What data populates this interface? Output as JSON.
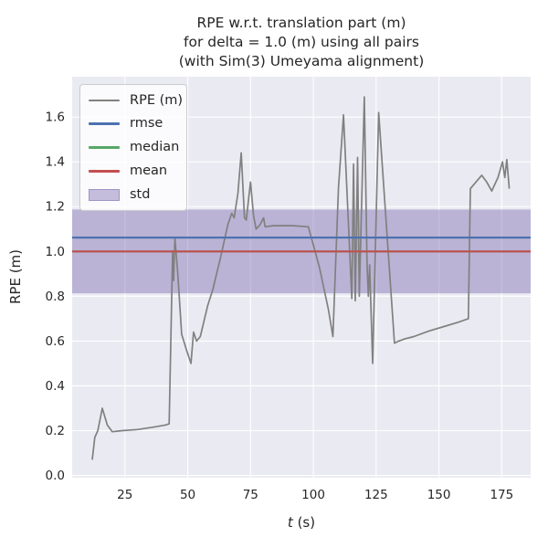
{
  "figure": {
    "background": "#ffffff",
    "axes_background": "#eaeaf2",
    "grid_color": "#ffffff",
    "text_color": "#262626"
  },
  "chart_data": {
    "type": "line",
    "title_lines": [
      "RPE w.r.t. translation part (m)",
      "for delta = 1.0 (m) using all pairs",
      "(with Sim(3) Umeyama alignment)"
    ],
    "xlabel_var": "t",
    "xlabel_units": " (s)",
    "ylabel": "RPE (m)",
    "xlim": [
      4,
      186.5
    ],
    "ylim": [
      -0.01,
      1.78
    ],
    "xticks": [
      25,
      50,
      75,
      100,
      125,
      150,
      175
    ],
    "yticks": [
      0.0,
      0.2,
      0.4,
      0.6,
      0.8,
      1.0,
      1.2,
      1.4,
      1.6
    ],
    "grid": true,
    "legend_position": "upper-left",
    "series": {
      "name": "RPE (m)",
      "color": "#808080",
      "points": [
        [
          12,
          0.07
        ],
        [
          13,
          0.17
        ],
        [
          14.2,
          0.2
        ],
        [
          16,
          0.3
        ],
        [
          18,
          0.225
        ],
        [
          20,
          0.195
        ],
        [
          24,
          0.2
        ],
        [
          30,
          0.205
        ],
        [
          36,
          0.215
        ],
        [
          41,
          0.225
        ],
        [
          42.6,
          0.23
        ],
        [
          44,
          1.0
        ],
        [
          44.4,
          0.87
        ],
        [
          44.9,
          1.06
        ],
        [
          46,
          0.91
        ],
        [
          47.6,
          0.63
        ],
        [
          49.5,
          0.56
        ],
        [
          51.3,
          0.5
        ],
        [
          52.3,
          0.64
        ],
        [
          53.5,
          0.6
        ],
        [
          55,
          0.62
        ],
        [
          58,
          0.76
        ],
        [
          60,
          0.83
        ],
        [
          63,
          0.97
        ],
        [
          66,
          1.12
        ],
        [
          67.5,
          1.17
        ],
        [
          68.5,
          1.15
        ],
        [
          70,
          1.26
        ],
        [
          71.3,
          1.44
        ],
        [
          72.6,
          1.15
        ],
        [
          73.3,
          1.14
        ],
        [
          75,
          1.31
        ],
        [
          76.2,
          1.16
        ],
        [
          77.2,
          1.1
        ],
        [
          78.8,
          1.12
        ],
        [
          80.2,
          1.15
        ],
        [
          80.8,
          1.11
        ],
        [
          84,
          1.115
        ],
        [
          92,
          1.115
        ],
        [
          98,
          1.11
        ],
        [
          102.4,
          0.93
        ],
        [
          106,
          0.74
        ],
        [
          107.8,
          0.62
        ],
        [
          110,
          1.285
        ],
        [
          112,
          1.61
        ],
        [
          115.3,
          0.79
        ],
        [
          116,
          1.39
        ],
        [
          116.7,
          0.78
        ],
        [
          117.6,
          1.42
        ],
        [
          118.3,
          0.8
        ],
        [
          120.3,
          1.69
        ],
        [
          121.4,
          0.94
        ],
        [
          121.9,
          0.8
        ],
        [
          122.4,
          0.94
        ],
        [
          123.6,
          0.5
        ],
        [
          126,
          1.62
        ],
        [
          132.3,
          0.59
        ],
        [
          134,
          0.6
        ],
        [
          136.5,
          0.61
        ],
        [
          140,
          0.62
        ],
        [
          146,
          0.645
        ],
        [
          152,
          0.665
        ],
        [
          158,
          0.685
        ],
        [
          161.7,
          0.7
        ],
        [
          162.5,
          1.28
        ],
        [
          164,
          1.3
        ],
        [
          167,
          1.34
        ],
        [
          169,
          1.31
        ],
        [
          171,
          1.27
        ],
        [
          173.5,
          1.33
        ],
        [
          175.3,
          1.4
        ],
        [
          176.2,
          1.33
        ],
        [
          177,
          1.41
        ],
        [
          178,
          1.28
        ]
      ]
    },
    "stats": {
      "rmse": {
        "value": 1.062,
        "color": "#4c72b0"
      },
      "median": {
        "value": 1.0,
        "color": "#55a868"
      },
      "mean": {
        "value": 1.0,
        "color": "#c44e52"
      },
      "std": {
        "band": [
          0.813,
          1.187
        ],
        "color": "#8172b2",
        "band_opacity": 0.45
      }
    },
    "legend": [
      {
        "label": "RPE (m)",
        "type": "line",
        "color": "#808080"
      },
      {
        "label": "rmse",
        "type": "line",
        "color": "#4c72b0"
      },
      {
        "label": "median",
        "type": "line",
        "color": "#55a868"
      },
      {
        "label": "mean",
        "type": "line",
        "color": "#c44e52"
      },
      {
        "label": "std",
        "type": "patch",
        "color": "#8172b2"
      }
    ]
  }
}
